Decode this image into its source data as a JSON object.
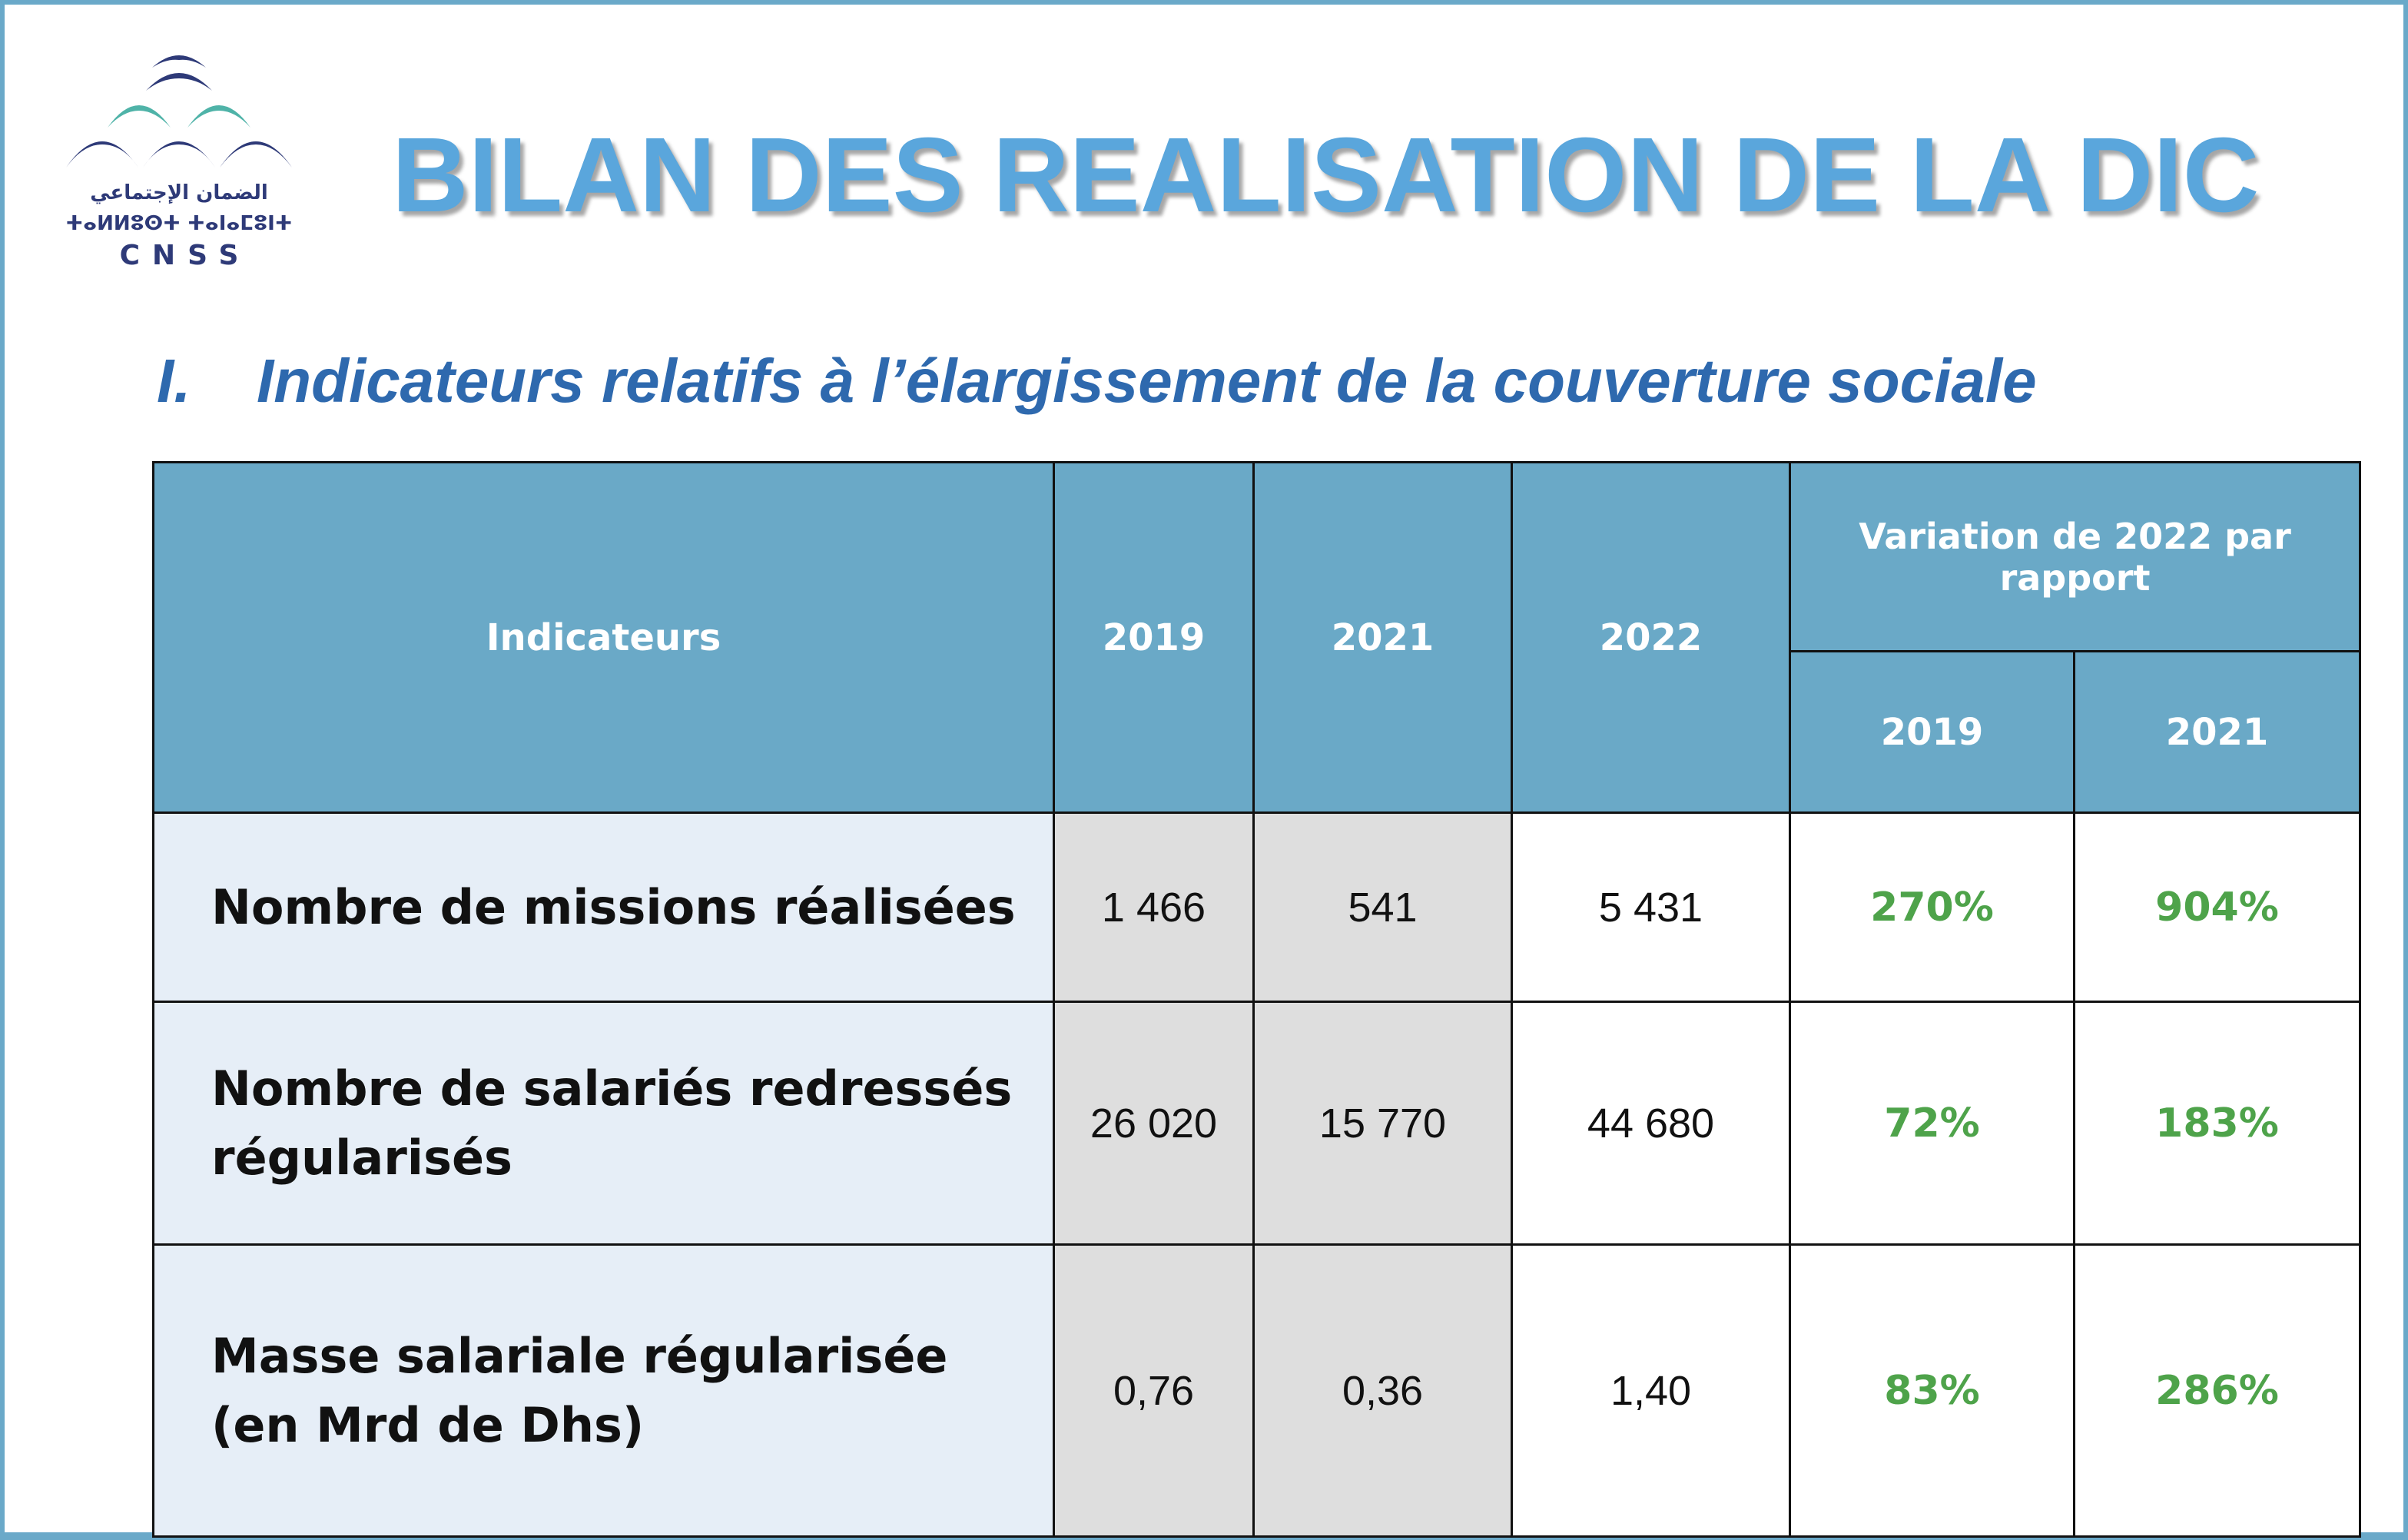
{
  "header": {
    "logo": {
      "arabic_text": "الضمان الإجتماعي",
      "tifinagh_text": "ⵜⴰⵍⵍⵓⵙⵜ ⵜⴰⵏⴰⵎⵓⵏⵜ",
      "acronym": "CNSS",
      "colors": {
        "navy": "#2e3a78",
        "teal": "#4fb3a8"
      }
    },
    "title": "BILAN DES REALISATION DE LA DIC"
  },
  "section": {
    "number": "I.",
    "title": "Indicateurs relatifs à l’élargissement de la couverture sociale"
  },
  "table": {
    "headers": {
      "indicateurs": "Indicateurs",
      "y2019": "2019",
      "y2021": "2021",
      "y2022": "2022",
      "variation": "Variation de 2022 par rapport",
      "var_2019": "2019",
      "var_2021": "2021"
    },
    "rows": [
      {
        "label_line1": "Nombre de missions réalisées",
        "label_line2": "",
        "v2019": "1 466",
        "v2021": "541",
        "v2022": "5 431",
        "var2019": "270%",
        "var2021": "904%"
      },
      {
        "label_line1": "Nombre de salariés redressés",
        "label_line2": "régularisés",
        "v2019": "26 020",
        "v2021": "15 770",
        "v2022": "44 680",
        "var2019": "72%",
        "var2021": "183%"
      },
      {
        "label_line1": "Masse salariale régularisée",
        "label_line2": "(en Mrd de Dhs)",
        "v2019": "0,76",
        "v2021": "0,36",
        "v2022": "1,40",
        "var2019": "83%",
        "var2021": "286%"
      }
    ],
    "colors": {
      "header_bg": "#6aa9c7",
      "label_bg": "#e6eef7",
      "past_years_bg": "#dedede",
      "variation_text": "#4ea34a"
    }
  }
}
